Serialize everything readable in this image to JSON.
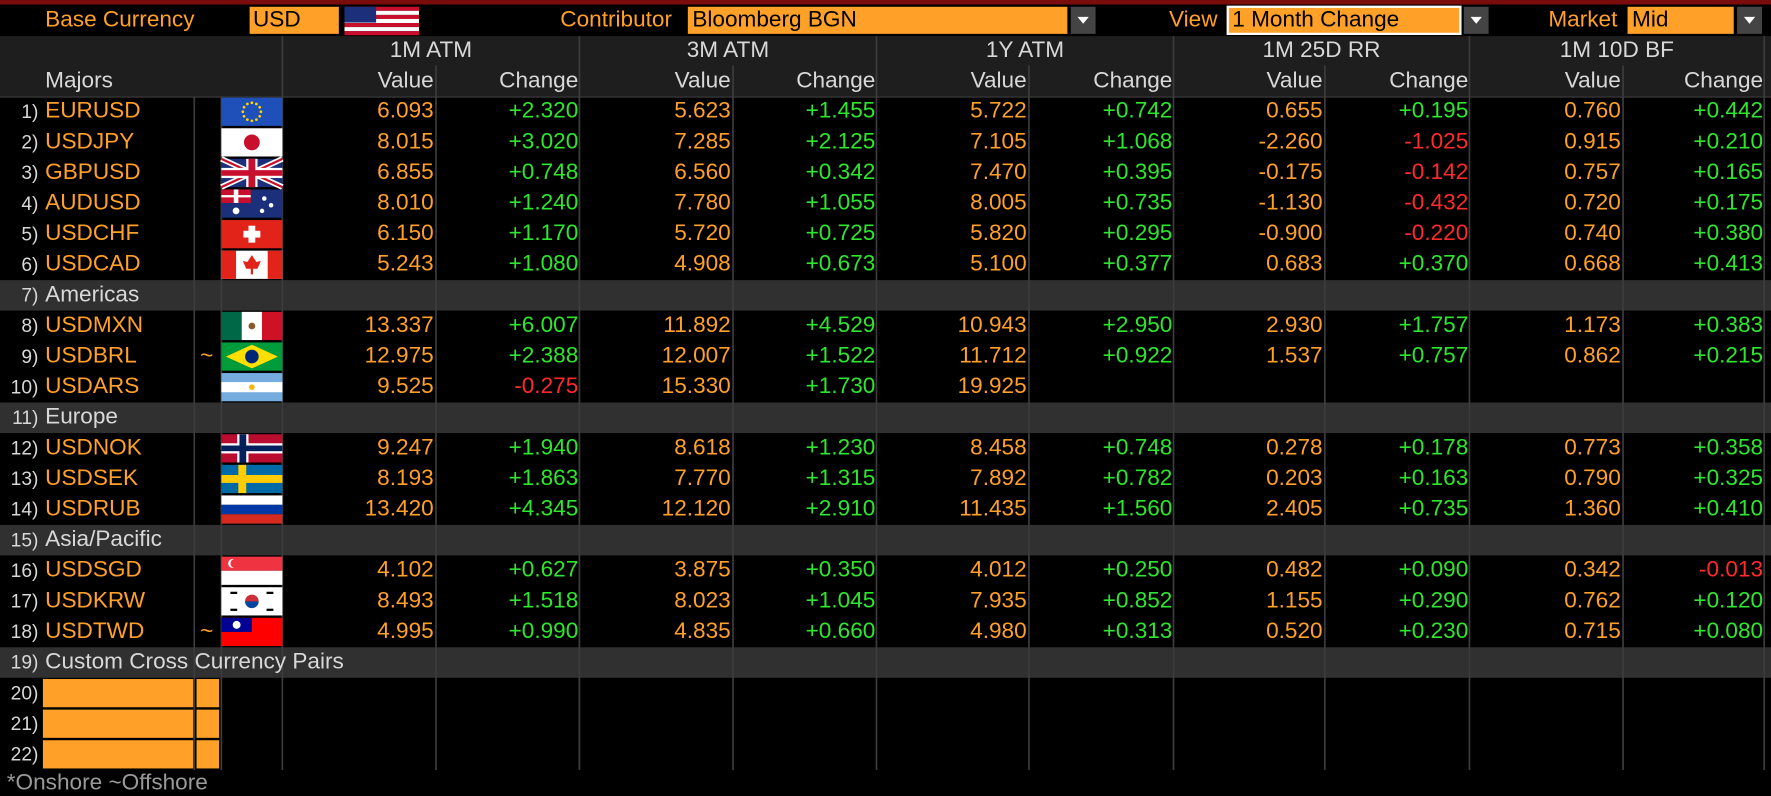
{
  "toolbar": {
    "base_currency_label": "Base Currency",
    "base_currency": "USD",
    "contributor_label": "Contributor",
    "contributor": "Bloomberg BGN",
    "view_label": "View",
    "view": "1 Month Change",
    "market_label": "Market",
    "market": "Mid"
  },
  "table": {
    "section_header": "Majors",
    "groups": [
      "1M ATM",
      "3M ATM",
      "1Y ATM",
      "1M 25D RR",
      "1M 10D BF"
    ],
    "subheaders": [
      "Value",
      "Change"
    ],
    "rows": [
      {
        "num": "1)",
        "name": "EURUSD",
        "cells": [
          "6.093",
          "+2.320",
          "5.623",
          "+1.455",
          "5.722",
          "+0.742",
          "0.655",
          "+0.195",
          "0.760",
          "+0.442"
        ]
      },
      {
        "num": "2)",
        "name": "USDJPY",
        "cells": [
          "8.015",
          "+3.020",
          "7.285",
          "+2.125",
          "7.105",
          "+1.068",
          "-2.260",
          "-1.025",
          "0.915",
          "+0.210"
        ]
      },
      {
        "num": "3)",
        "name": "GBPUSD",
        "cells": [
          "6.855",
          "+0.748",
          "6.560",
          "+0.342",
          "7.470",
          "+0.395",
          "-0.175",
          "-0.142",
          "0.757",
          "+0.165"
        ]
      },
      {
        "num": "4)",
        "name": "AUDUSD",
        "cells": [
          "8.010",
          "+1.240",
          "7.780",
          "+1.055",
          "8.005",
          "+0.735",
          "-1.130",
          "-0.432",
          "0.720",
          "+0.175"
        ]
      },
      {
        "num": "5)",
        "name": "USDCHF",
        "cells": [
          "6.150",
          "+1.170",
          "5.720",
          "+0.725",
          "5.820",
          "+0.295",
          "-0.900",
          "-0.220",
          "0.740",
          "+0.380"
        ]
      },
      {
        "num": "6)",
        "name": "USDCAD",
        "cells": [
          "5.243",
          "+1.080",
          "4.908",
          "+0.673",
          "5.100",
          "+0.377",
          "0.683",
          "+0.370",
          "0.668",
          "+0.413"
        ]
      },
      {
        "num": "7)",
        "section": "Americas"
      },
      {
        "num": "8)",
        "name": "USDMXN",
        "cells": [
          "13.337",
          "+6.007",
          "11.892",
          "+4.529",
          "10.943",
          "+2.950",
          "2.930",
          "+1.757",
          "1.173",
          "+0.383"
        ]
      },
      {
        "num": "9)",
        "name": "USDBRL",
        "marker": "~",
        "cells": [
          "12.975",
          "+2.388",
          "12.007",
          "+1.522",
          "11.712",
          "+0.922",
          "1.537",
          "+0.757",
          "0.862",
          "+0.215"
        ]
      },
      {
        "num": "10)",
        "name": "USDARS",
        "cells": [
          "9.525",
          "-0.275",
          "15.330",
          "+1.730",
          "19.925",
          null,
          null,
          null,
          null,
          null
        ]
      },
      {
        "num": "11)",
        "section": "Europe"
      },
      {
        "num": "12)",
        "name": "USDNOK",
        "cells": [
          "9.247",
          "+1.940",
          "8.618",
          "+1.230",
          "8.458",
          "+0.748",
          "0.278",
          "+0.178",
          "0.773",
          "+0.358"
        ]
      },
      {
        "num": "13)",
        "name": "USDSEK",
        "cells": [
          "8.193",
          "+1.863",
          "7.770",
          "+1.315",
          "7.892",
          "+0.782",
          "0.203",
          "+0.163",
          "0.790",
          "+0.325"
        ]
      },
      {
        "num": "14)",
        "name": "USDRUB",
        "cells": [
          "13.420",
          "+4.345",
          "12.120",
          "+2.910",
          "11.435",
          "+1.560",
          "2.405",
          "+0.735",
          "1.360",
          "+0.410"
        ]
      },
      {
        "num": "15)",
        "section": "Asia/Pacific"
      },
      {
        "num": "16)",
        "name": "USDSGD",
        "cells": [
          "4.102",
          "+0.627",
          "3.875",
          "+0.350",
          "4.012",
          "+0.250",
          "0.482",
          "+0.090",
          "0.342",
          "-0.013"
        ]
      },
      {
        "num": "17)",
        "name": "USDKRW",
        "cells": [
          "8.493",
          "+1.518",
          "8.023",
          "+1.045",
          "7.935",
          "+0.852",
          "1.155",
          "+0.290",
          "0.762",
          "+0.120"
        ]
      },
      {
        "num": "18)",
        "name": "USDTWD",
        "marker": "~",
        "cells": [
          "4.995",
          "+0.990",
          "4.835",
          "+0.660",
          "4.980",
          "+0.313",
          "0.520",
          "+0.230",
          "0.715",
          "+0.080"
        ]
      },
      {
        "num": "19)",
        "section": "Custom Cross Currency Pairs"
      },
      {
        "num": "20)"
      },
      {
        "num": "21)"
      },
      {
        "num": "22)"
      }
    ]
  },
  "footer": "*Onshore ~Offshore"
}
